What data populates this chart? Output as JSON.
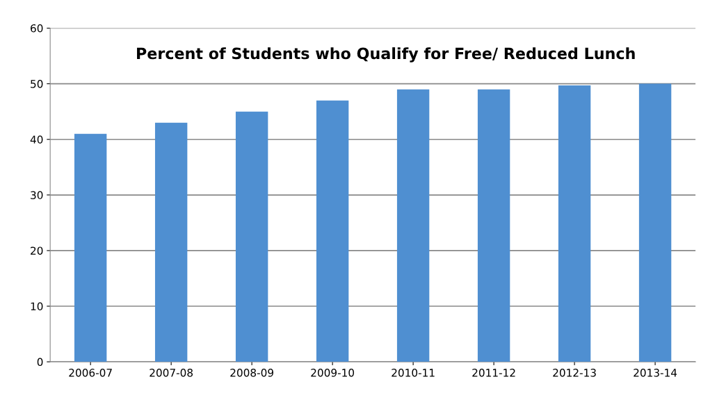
{
  "chart_data": {
    "type": "bar",
    "title": "Percent of Students who Qualify for Free/ Reduced Lunch",
    "categories": [
      "2006-07",
      "2007-08",
      "2008-09",
      "2009-10",
      "2010-11",
      "2011-12",
      "2012-13",
      "2013-14"
    ],
    "values": [
      41,
      43,
      45,
      47,
      49,
      49,
      49.7,
      50
    ],
    "color": "#4f8fd1",
    "ylim": [
      0,
      60
    ],
    "yticks": [
      0,
      10,
      20,
      30,
      40,
      50,
      60
    ],
    "grid": "y",
    "legend": false
  }
}
